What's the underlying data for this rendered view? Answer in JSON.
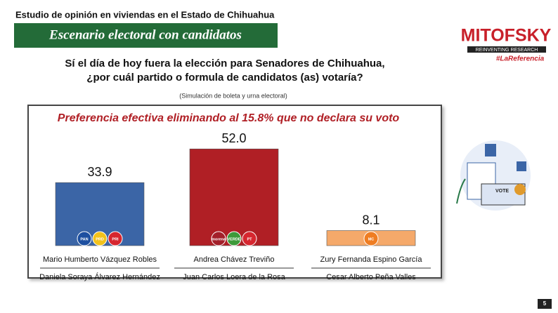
{
  "header": {
    "study": "Estudio de opinión en viviendas en el Estado de Chihuahua",
    "section": "Escenario electoral con candidatos",
    "logo": "MITOFSKY",
    "logo_tagline": "REINVENTING RESEARCH",
    "logo_hashtag": "#LaReferencia"
  },
  "question": {
    "line1": "Sí el día de hoy fuera la elección para Senadores de Chihuahua,",
    "line2": "¿por cuál partido o formula de candidatos (as) votaría?",
    "note": "(Simulación de boleta y urna electoral)"
  },
  "chart_data": {
    "type": "bar",
    "title": "Preferencia efectiva eliminando al 15.8% que no declara su voto",
    "categories": [
      "Mario Humberto Vázquez Robles",
      "Andrea Chávez Treviño",
      "Zury Fernanda Espino García"
    ],
    "second_candidates": [
      "Daniela Soraya  Álvarez Hernández",
      "Juan Carlos Loera de la Rosa",
      "Cesar Alberto Peña Valles"
    ],
    "parties": [
      [
        "PAN",
        "PRD",
        "PRI"
      ],
      [
        "morena",
        "VERDE",
        "PT"
      ],
      [
        "MC"
      ]
    ],
    "values": [
      33.9,
      52.0,
      8.1
    ],
    "value_labels": [
      "33.9",
      "52.0",
      "8.1"
    ],
    "colors": [
      "#3b65a6",
      "#b01f25",
      "#f5a96a"
    ]
  },
  "illustration": {
    "ballot_box": "VOTE"
  },
  "page_number": "5"
}
